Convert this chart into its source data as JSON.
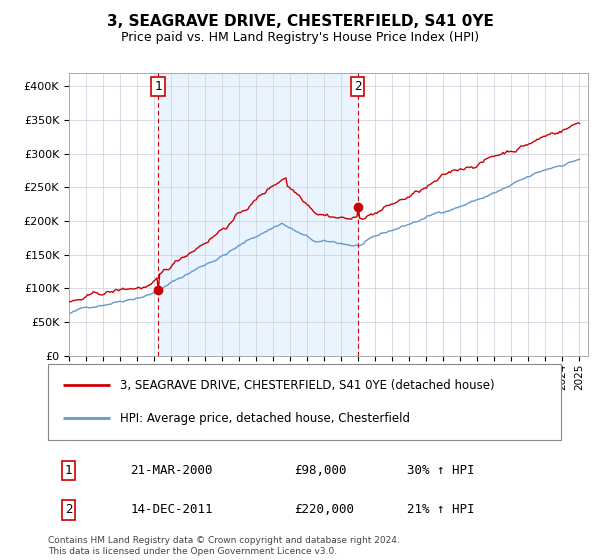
{
  "title": "3, SEAGRAVE DRIVE, CHESTERFIELD, S41 0YE",
  "subtitle": "Price paid vs. HM Land Registry's House Price Index (HPI)",
  "legend_line1": "3, SEAGRAVE DRIVE, CHESTERFIELD, S41 0YE (detached house)",
  "legend_line2": "HPI: Average price, detached house, Chesterfield",
  "annotation1_label": "1",
  "annotation1_date": "21-MAR-2000",
  "annotation1_price": "£98,000",
  "annotation1_hpi": "30% ↑ HPI",
  "annotation2_label": "2",
  "annotation2_date": "14-DEC-2011",
  "annotation2_price": "£220,000",
  "annotation2_hpi": "21% ↑ HPI",
  "footer": "Contains HM Land Registry data © Crown copyright and database right 2024.\nThis data is licensed under the Open Government Licence v3.0.",
  "red_color": "#cc0000",
  "blue_color": "#6699cc",
  "bg_color": "#ddeeff",
  "grid_color": "#ccccdd",
  "ylim": [
    0,
    420000
  ],
  "year_start": 1995,
  "year_end": 2025,
  "sale1_year": 2000.22,
  "sale1_value": 98000,
  "sale2_year": 2011.96,
  "sale2_value": 220000
}
